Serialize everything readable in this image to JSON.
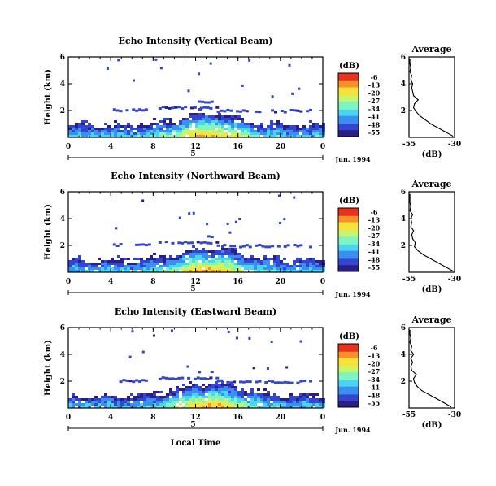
{
  "figure": {
    "xlabel_bottom": "Local Time",
    "date_label": "Jun. 1994",
    "colorbar_unit": "(dB)",
    "colorbar_ticks": [
      "-6",
      "-13",
      "-20",
      "-27",
      "-34",
      "-41",
      "-48",
      "-55"
    ],
    "colorscale": [
      "#2b1f86",
      "#3446d0",
      "#3a8ff0",
      "#49d4f2",
      "#7ff5c0",
      "#c9f56a",
      "#f8e23a",
      "#f9912b",
      "#e8321d"
    ]
  },
  "chart_data": [
    {
      "type": "heatmap",
      "title": "Echo Intensity (Vertical Beam)",
      "ylabel": "Height (km)",
      "xlim": [
        0,
        24
      ],
      "ylim": [
        0,
        6
      ],
      "xticks": [
        "0",
        "4",
        "8",
        "12",
        "16",
        "20",
        "0"
      ],
      "yticks": [
        "2",
        "4",
        "6"
      ],
      "day_mark": "5",
      "colorbar": {
        "unit": "(dB)",
        "range": [
          -55,
          -6
        ],
        "ticks": [
          "-6",
          "-13",
          "-20",
          "-27",
          "-34",
          "-41",
          "-48",
          "-55"
        ]
      },
      "profile": {
        "title": "Average",
        "xlabel": "(dB)",
        "xticks": [
          "-55",
          "-30"
        ],
        "yticks": [
          "2",
          "4",
          "6"
        ],
        "xlim": [
          -55,
          -30
        ],
        "ylim": [
          0,
          6
        ],
        "height": [
          0.1,
          0.4,
          0.7,
          1.0,
          1.3,
          1.6,
          1.9,
          2.2,
          2.5,
          2.8,
          3.1,
          3.4,
          3.7,
          4.0,
          4.3,
          4.6,
          4.9,
          5.2,
          5.5,
          5.8
        ],
        "db": [
          -31,
          -35,
          -39,
          -43,
          -46,
          -49,
          -51,
          -52.5,
          -52,
          -50,
          -52.5,
          -53,
          -53.5,
          -53,
          -54,
          -53.5,
          -54.5,
          -54,
          -54.5,
          -54.5
        ]
      }
    },
    {
      "type": "heatmap",
      "title": "Echo Intensity (Northward Beam)",
      "ylabel": "Height (km)",
      "xlim": [
        0,
        24
      ],
      "ylim": [
        0,
        6
      ],
      "xticks": [
        "0",
        "4",
        "8",
        "12",
        "16",
        "20",
        "0"
      ],
      "yticks": [
        "2",
        "4",
        "6"
      ],
      "day_mark": "5",
      "colorbar": {
        "unit": "(dB)",
        "range": [
          -55,
          -6
        ],
        "ticks": [
          "-6",
          "-13",
          "-20",
          "-27",
          "-34",
          "-41",
          "-48",
          "-55"
        ]
      },
      "profile": {
        "title": "Average",
        "xlabel": "(dB)",
        "xticks": [
          "-55",
          "-30"
        ],
        "yticks": [
          "2",
          "4",
          "6"
        ],
        "xlim": [
          -55,
          -30
        ],
        "ylim": [
          0,
          6
        ],
        "height": [
          0.1,
          0.4,
          0.7,
          1.0,
          1.3,
          1.6,
          1.9,
          2.2,
          2.5,
          2.8,
          3.1,
          3.4,
          3.7,
          4.0,
          4.3,
          4.6,
          4.9,
          5.2,
          5.5,
          5.8
        ],
        "db": [
          -31,
          -35,
          -39,
          -43,
          -47,
          -50,
          -52,
          -51.5,
          -53,
          -53.5,
          -52.5,
          -54,
          -53.5,
          -54,
          -53,
          -54.5,
          -54,
          -54.5,
          -54.5,
          -54.5
        ]
      }
    },
    {
      "type": "heatmap",
      "title": "Echo Intensity (Eastward Beam)",
      "ylabel": "Height (km)",
      "xlim": [
        0,
        24
      ],
      "ylim": [
        0,
        6
      ],
      "xticks": [
        "0",
        "4",
        "8",
        "12",
        "16",
        "20",
        "0"
      ],
      "yticks": [
        "2",
        "4",
        "6"
      ],
      "day_mark": "5",
      "colorbar": {
        "unit": "(dB)",
        "range": [
          -55,
          -6
        ],
        "ticks": [
          "-6",
          "-13",
          "-20",
          "-27",
          "-34",
          "-41",
          "-48",
          "-55"
        ]
      },
      "profile": {
        "title": "Average",
        "xlabel": "(dB)",
        "xticks": [
          "-55",
          "-30"
        ],
        "yticks": [
          "2",
          "4",
          "6"
        ],
        "xlim": [
          -55,
          -30
        ],
        "ylim": [
          0,
          6
        ],
        "height": [
          0.1,
          0.4,
          0.7,
          1.0,
          1.3,
          1.6,
          1.9,
          2.2,
          2.5,
          2.8,
          3.1,
          3.4,
          3.7,
          4.0,
          4.3,
          4.6,
          4.9,
          5.2,
          5.5,
          5.8
        ],
        "db": [
          -32,
          -36,
          -40,
          -44,
          -48,
          -50.5,
          -52,
          -52.5,
          -51,
          -53.5,
          -54,
          -53,
          -54,
          -52.5,
          -54,
          -53.5,
          -54.5,
          -54,
          -54.5,
          -54.5
        ]
      }
    }
  ]
}
